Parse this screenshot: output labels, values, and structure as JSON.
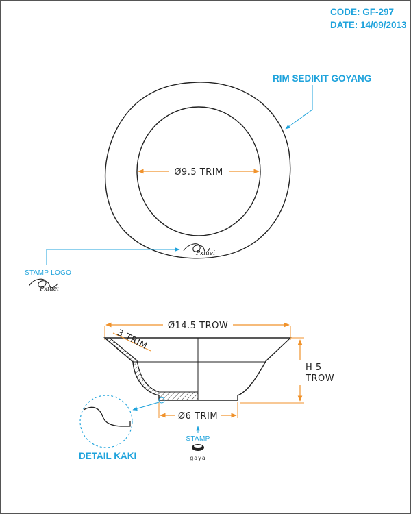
{
  "header": {
    "code": "CODE: GF-297",
    "date": "DATE: 14/09/2013"
  },
  "top_view": {
    "rim_note": "RIM SEDIKIT GOYANG",
    "inner_diameter": "Ø9.5 TRIM",
    "stamp_logo_label": "STAMP LOGO",
    "signature_text": "Pxiuei"
  },
  "side_view": {
    "top_diameter": "Ø14.5 TROW",
    "thickness": "3 TRIM",
    "height_line1": "H 5",
    "height_line2": "TROW",
    "foot_diameter": "Ø6 TRIM",
    "detail_label": "DETAIL KAKI",
    "stamp_label": "STAMP",
    "stamp_caption": "gaya"
  },
  "colors": {
    "accent_blue": "#1fa3dc",
    "dimension_orange": "#f0922b",
    "line": "#222222"
  }
}
